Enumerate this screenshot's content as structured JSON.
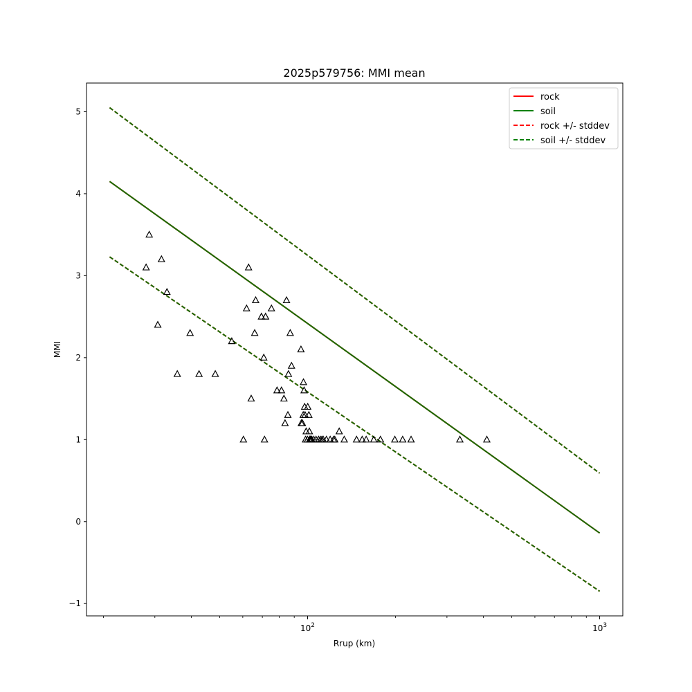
{
  "chart_data": {
    "type": "scatter",
    "title": "2025p579756: MMI mean",
    "xlabel": "Rrup (km)",
    "ylabel": "MMI",
    "xscale": "log",
    "xlim": [
      17.5,
      1200
    ],
    "ylim": [
      -1.15,
      5.35
    ],
    "x_ticks": [
      {
        "value": 100,
        "base": "10",
        "exp": "2"
      },
      {
        "value": 1000,
        "base": "10",
        "exp": "3"
      }
    ],
    "y_ticks": [
      -1,
      0,
      1,
      2,
      3,
      4,
      5
    ],
    "grid": false,
    "legend_position": "top-right",
    "legend": [
      {
        "label": "rock",
        "color": "#ff0000",
        "style": "solid"
      },
      {
        "label": "soil",
        "color": "#008000",
        "style": "solid"
      },
      {
        "label": "rock +/- stddev",
        "color": "#ff0000",
        "style": "dashed"
      },
      {
        "label": "soil +/- stddev",
        "color": "#008000",
        "style": "dashed"
      }
    ],
    "lines": [
      {
        "name": "rock",
        "color": "#ff0000",
        "style": "solid",
        "x": [
          21,
          1000
        ],
        "y": [
          4.15,
          -0.14
        ]
      },
      {
        "name": "rock +/- stddev",
        "color": "#ff0000",
        "style": "dashed",
        "x": [
          21,
          1000
        ],
        "y": [
          5.05,
          0.59
        ]
      },
      {
        "name": "rock +/- stddev",
        "color": "#ff0000",
        "style": "dashed",
        "x": [
          21,
          1000
        ],
        "y": [
          3.23,
          -0.85
        ]
      },
      {
        "name": "soil",
        "color": "#1a6b00",
        "style": "solid",
        "x": [
          21,
          1000
        ],
        "y": [
          4.15,
          -0.14
        ]
      },
      {
        "name": "soil +/- stddev",
        "color": "#1a6b00",
        "style": "dashed",
        "x": [
          21,
          1000
        ],
        "y": [
          5.05,
          0.59
        ]
      },
      {
        "name": "soil +/- stddev",
        "color": "#1a6b00",
        "style": "dashed",
        "x": [
          21,
          1000
        ],
        "y": [
          3.23,
          -0.85
        ]
      }
    ],
    "points": {
      "marker": "triangle",
      "color": "#000000",
      "x": [
        28.0,
        28.7,
        30.7,
        31.6,
        33.0,
        35.8,
        39.6,
        42.5,
        48.3,
        55.0,
        60.3,
        61.8,
        62.8,
        64.1,
        65.9,
        66.4,
        69.5,
        70.8,
        71.2,
        71.8,
        75.2,
        78.6,
        81.4,
        83.0,
        83.7,
        84.7,
        85.6,
        86.0,
        87.2,
        88.1,
        94.9,
        95.2,
        96.0,
        96.6,
        96.8,
        97.3,
        97.7,
        98.0,
        98.4,
        98.9,
        99.9,
        100.1,
        101.0,
        101.4,
        101.6,
        101.9,
        102.3,
        102.9,
        103.4,
        105.0,
        106.9,
        109.0,
        110.6,
        111.9,
        113.1,
        116.0,
        119.5,
        122.7,
        123.9,
        128.3,
        133.5,
        147.1,
        153.8,
        158.7,
        168.5,
        177.6,
        198.9,
        211.6,
        226.1,
        332.1,
        410.8
      ],
      "y": [
        3.1,
        3.5,
        2.4,
        3.2,
        2.8,
        1.8,
        2.3,
        1.8,
        1.8,
        2.2,
        1.0,
        2.6,
        3.1,
        1.5,
        2.3,
        2.7,
        2.5,
        2.0,
        1.0,
        2.5,
        2.6,
        1.6,
        1.6,
        1.5,
        1.2,
        2.7,
        1.3,
        1.8,
        2.3,
        1.9,
        2.1,
        1.2,
        1.2,
        1.3,
        1.7,
        1.6,
        1.4,
        1.3,
        1.0,
        1.1,
        1.0,
        1.4,
        1.3,
        1.1,
        1.0,
        1.0,
        1.0,
        1.0,
        1.0,
        1.0,
        1.0,
        1.0,
        1.0,
        1.0,
        1.0,
        1.0,
        1.0,
        1.0,
        1.0,
        1.1,
        1.0,
        1.0,
        1.0,
        1.0,
        1.0,
        1.0,
        1.0,
        1.0,
        1.0,
        1.0,
        1.0
      ]
    }
  }
}
